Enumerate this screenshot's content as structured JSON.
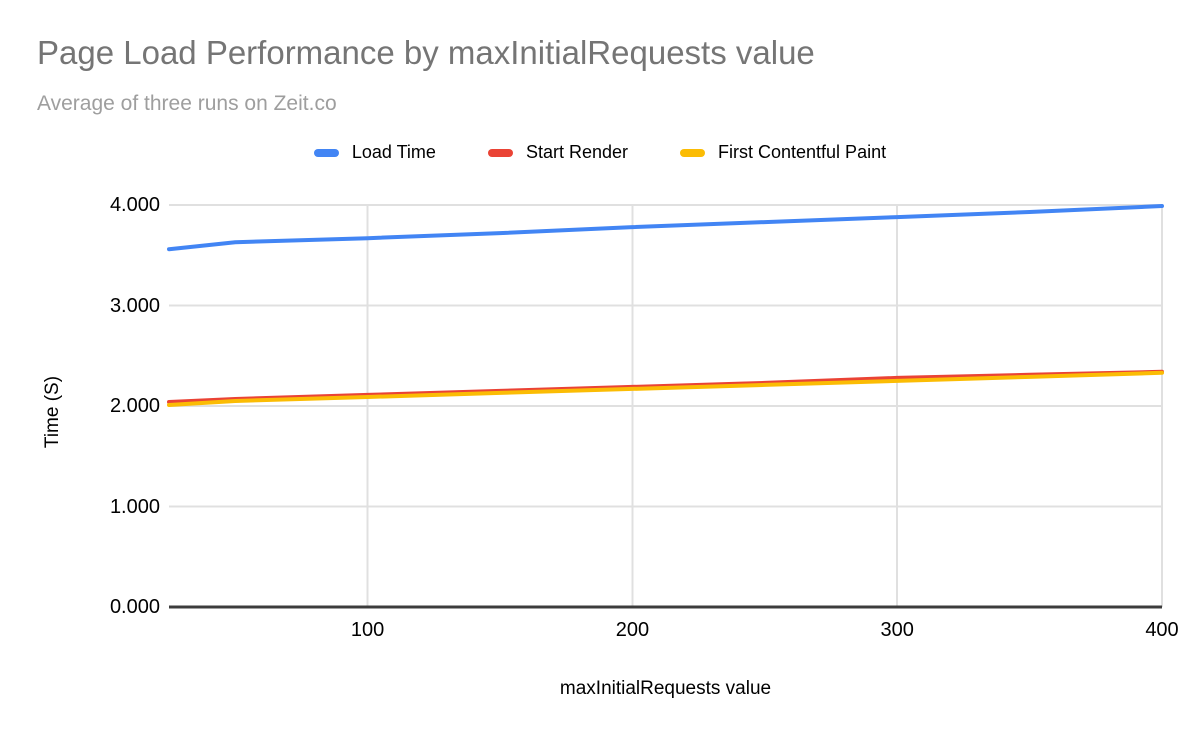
{
  "chart_data": {
    "type": "line",
    "title": "Page Load Performance by maxInitialRequests value",
    "subtitle": "Average of three runs on Zeit.co",
    "xlabel": "maxInitialRequests value",
    "ylabel": "Time (S)",
    "x": [
      25,
      50,
      100,
      150,
      200,
      250,
      300,
      350,
      400
    ],
    "series": [
      {
        "name": "Load Time",
        "color": "#4285F4",
        "values": [
          3.56,
          3.63,
          3.67,
          3.72,
          3.78,
          3.83,
          3.88,
          3.93,
          3.99
        ]
      },
      {
        "name": "Start Render",
        "color": "#EA4335",
        "values": [
          2.04,
          2.07,
          2.11,
          2.15,
          2.19,
          2.23,
          2.28,
          2.31,
          2.34
        ]
      },
      {
        "name": "First Contentful Paint",
        "color": "#FBBC04",
        "values": [
          2.01,
          2.05,
          2.09,
          2.13,
          2.17,
          2.21,
          2.25,
          2.29,
          2.33
        ]
      }
    ],
    "xlim": [
      25,
      400
    ],
    "ylim": [
      0,
      4
    ],
    "x_ticks": [
      100,
      200,
      300,
      400
    ],
    "x_tick_labels": [
      "100",
      "200",
      "300",
      "400"
    ],
    "y_ticks": [
      0,
      1,
      2,
      3,
      4
    ],
    "y_tick_labels": [
      "0.000",
      "1.000",
      "2.000",
      "3.000",
      "4.000"
    ],
    "grid": true,
    "legend_position": "top",
    "colors": {
      "title": "#757575",
      "subtitle": "#9E9E9E",
      "grid": "#E0E0E0",
      "axis_line": "#3C3C3C",
      "tick_label": "#000000"
    }
  }
}
